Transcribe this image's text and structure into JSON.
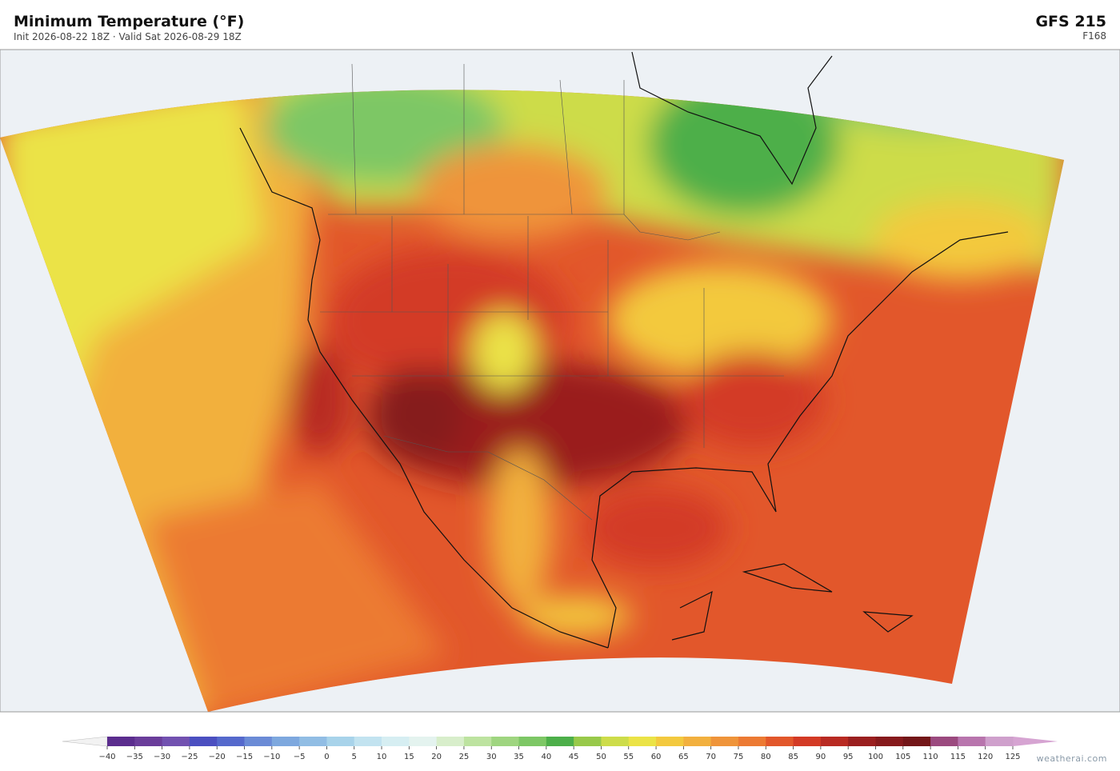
{
  "header": {
    "title": "Minimum Temperature  (°F)",
    "subtitle": "Init 2026-08-22 18Z  ·  Valid Sat 2026-08-29 18Z",
    "model": "GFS  215",
    "forecast_hour": "F168"
  },
  "colorbar": {
    "ticks": [
      {
        "value": -40,
        "label": "−40"
      },
      {
        "value": -35,
        "label": "−35"
      },
      {
        "value": -30,
        "label": "−30"
      },
      {
        "value": -25,
        "label": "−25"
      },
      {
        "value": -20,
        "label": "−20"
      },
      {
        "value": -15,
        "label": "−15"
      },
      {
        "value": -10,
        "label": "−10"
      },
      {
        "value": -5,
        "label": "−5"
      },
      0,
      5,
      10,
      15,
      20,
      25,
      30,
      35,
      40,
      45,
      50,
      55,
      60,
      65,
      70,
      75,
      80,
      85,
      90,
      95,
      100,
      105,
      110,
      115,
      120,
      125
    ],
    "colors": [
      "#5b2d8e",
      "#6a3d9a",
      "#7251b0",
      "#4b4fc0",
      "#5569cc",
      "#6b8bd6",
      "#7ea8de",
      "#91bde4",
      "#a8d3ea",
      "#c2e3f0",
      "#d6eef2",
      "#e4f3ef",
      "#d8eecb",
      "#bde3a0",
      "#9fd580",
      "#7dc765",
      "#4daf4a",
      "#98c94a",
      "#cddc4a",
      "#ebe346",
      "#f3c93e",
      "#f2b03e",
      "#ef943a",
      "#ec7a33",
      "#e2572b",
      "#d33a25",
      "#b82a22",
      "#9a1f1f",
      "#861a1c",
      "#731618",
      "#9b4a7f",
      "#b875ad",
      "#cfa0cc"
    ],
    "under_color": "#f2f2f2",
    "over_color": "#d6a4d2"
  },
  "footer": {
    "credit": "weatherai.com"
  }
}
